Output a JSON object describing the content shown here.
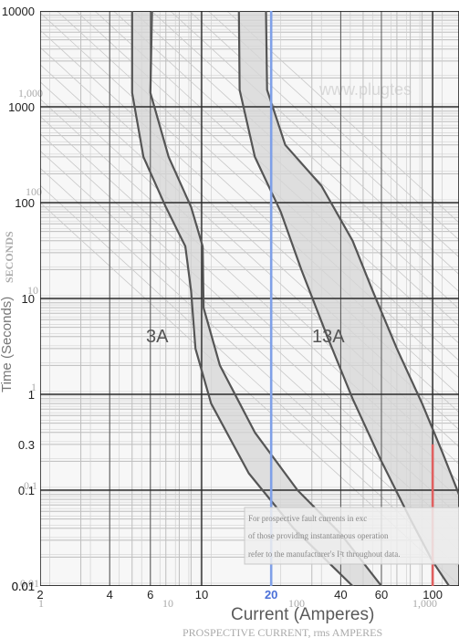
{
  "chart_data": {
    "type": "line",
    "xscale": "log",
    "yscale": "log",
    "xlim": [
      2,
      130
    ],
    "ylim": [
      0.01,
      10000
    ],
    "x_ticks": [
      "2",
      "4",
      "6",
      "10",
      "20",
      "40",
      "60",
      "100"
    ],
    "x_tick_values": [
      2,
      4,
      6,
      10,
      20,
      40,
      60,
      100
    ],
    "x_highlight": "20",
    "y_ticks": [
      "10000",
      "1000",
      "100",
      "10",
      "1",
      "0.3",
      "0.1",
      "0.01",
      "0.01"
    ],
    "y_tick_values": [
      10000,
      1000,
      100,
      10,
      1,
      0.3,
      0.1,
      0.01,
      0.01
    ],
    "xlabel": "Current (Amperes)",
    "ylabel": "Time (Seconds)",
    "grid": true,
    "series": [
      {
        "name": "3A",
        "min_curve": [
          [
            5.0,
            10000
          ],
          [
            5.0,
            1400
          ],
          [
            5.6,
            300
          ],
          [
            7.0,
            90
          ],
          [
            8.5,
            35
          ],
          [
            9.0,
            12
          ],
          [
            9.4,
            3
          ],
          [
            11,
            0.8
          ],
          [
            16,
            0.15
          ],
          [
            25,
            0.04
          ],
          [
            45,
            0.01
          ],
          [
            60,
            0.006
          ]
        ],
        "max_curve": [
          [
            6.1,
            10000
          ],
          [
            6.0,
            1400
          ],
          [
            7.2,
            300
          ],
          [
            9.0,
            90
          ],
          [
            10.1,
            35
          ],
          [
            10.2,
            8
          ],
          [
            12,
            2
          ],
          [
            17,
            0.4
          ],
          [
            26,
            0.1
          ],
          [
            40,
            0.035
          ],
          [
            60,
            0.01
          ],
          [
            80,
            0.006
          ]
        ]
      },
      {
        "name": "13A",
        "min_curve": [
          [
            14.5,
            10000
          ],
          [
            14.6,
            1500
          ],
          [
            17,
            300
          ],
          [
            22,
            80
          ],
          [
            27,
            20
          ],
          [
            35,
            4
          ],
          [
            45,
            0.9
          ],
          [
            60,
            0.2
          ],
          [
            80,
            0.05
          ],
          [
            100,
            0.018
          ],
          [
            130,
            0.007
          ]
        ],
        "max_curve": [
          [
            19,
            10000
          ],
          [
            19.2,
            1500
          ],
          [
            23,
            400
          ],
          [
            33,
            150
          ],
          [
            45,
            40
          ],
          [
            55,
            12
          ],
          [
            70,
            3
          ],
          [
            90,
            0.8
          ],
          [
            110,
            0.25
          ],
          [
            130,
            0.09
          ]
        ]
      }
    ],
    "vertical_markers": [
      {
        "x": 20,
        "color": "#7fa0e8",
        "from": 0.01,
        "to": 10000
      },
      {
        "x": 100,
        "color": "#e06060",
        "from": 0.01,
        "to": 0.3
      }
    ],
    "annotations": [
      "3A",
      "13A"
    ]
  },
  "watermark": "www.plugtes",
  "secondary_axis": {
    "y_ghost_ticks": [
      "1,000",
      "100",
      "10",
      "1",
      "0.1",
      "0.01"
    ],
    "x_ghost_ticks": [
      "1",
      "10",
      "100",
      "1,000"
    ],
    "x_title_fragment": "PROSPECTIVE CURRENT, rms AMPERES",
    "y_title_fragment": "SECONDS"
  },
  "note_lines": [
    "For prospective fault currents in exc",
    "of those providing instantaneous operation",
    "refer to the manufacturer's I²t throughout data."
  ],
  "colors": {
    "band_fill": "#d6d6d6",
    "curve": "#555555",
    "grid_major": "#2a2a2a",
    "grid_minor": "#bdbdbd"
  }
}
